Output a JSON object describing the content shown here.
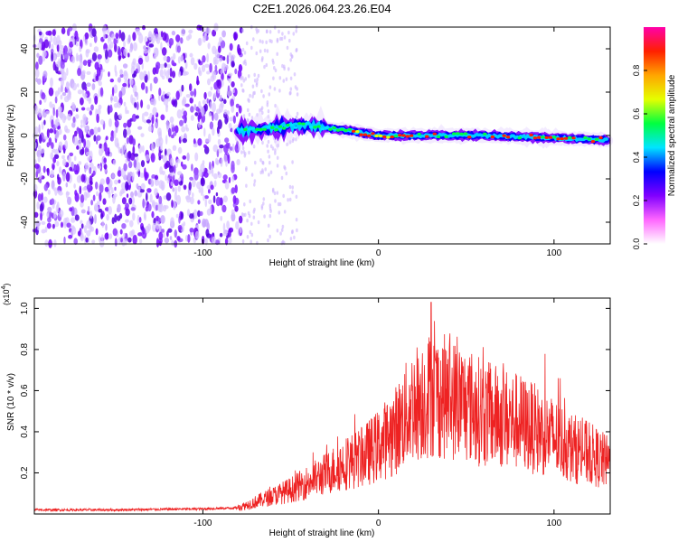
{
  "figure": {
    "title": "C2E1.2026.064.23.26.E04"
  },
  "chart_data": [
    {
      "type": "heatmap",
      "title": "C2E1.2026.064.23.26.E04",
      "xlabel": "Height of straight line (km)",
      "ylabel": "Frequency (Hz)",
      "xlim": [
        -196,
        132
      ],
      "ylim": [
        -50,
        50
      ],
      "x_ticks": [
        -100,
        0,
        100
      ],
      "y_ticks": [
        -40,
        -20,
        0,
        20,
        40
      ],
      "grid": false,
      "colorbar": {
        "label": "Normalized spectral amplitude",
        "range": [
          0.0,
          1.0
        ],
        "ticks": [
          0.0,
          0.2,
          0.4,
          0.6,
          0.8
        ],
        "colormap": [
          "#ffffff",
          "#ff66ff",
          "#8000ff",
          "#0000ff",
          "#00e5ff",
          "#00ff40",
          "#e5ff00",
          "#ffa500",
          "#ff2000",
          "#ff00aa"
        ]
      },
      "description_points": [
        {
          "x": -80,
          "frequency": 2
        },
        {
          "x": -40,
          "frequency": 5
        },
        {
          "x": 0,
          "frequency": 0
        },
        {
          "x": 60,
          "frequency": 0
        },
        {
          "x": 130,
          "frequency": -2
        }
      ]
    },
    {
      "type": "line",
      "xlabel": "Height of straight line (km)",
      "ylabel": "SNR (10 * v/v)",
      "y_scale_label": "(x10^4)",
      "xlim": [
        -196,
        132
      ],
      "ylim": [
        0,
        1.05
      ],
      "x_ticks": [
        -100,
        0,
        100
      ],
      "y_ticks": [
        0.2,
        0.4,
        0.6,
        0.8,
        1.0
      ],
      "grid": false,
      "series": [
        {
          "name": "SNR",
          "color": "#ee2222",
          "envelope": {
            "x": [
              -196,
              -150,
              -100,
              -80,
              -70,
              -60,
              -50,
              -40,
              -30,
              -20,
              -10,
              0,
              10,
              20,
              30,
              40,
              50,
              60,
              70,
              80,
              90,
              100,
              110,
              120,
              132
            ],
            "y": [
              0.02,
              0.02,
              0.025,
              0.03,
              0.06,
              0.09,
              0.12,
              0.16,
              0.2,
              0.25,
              0.28,
              0.34,
              0.42,
              0.55,
              0.6,
              0.58,
              0.55,
              0.5,
              0.48,
              0.46,
              0.42,
              0.38,
              0.33,
              0.3,
              0.25
            ]
          },
          "peak": {
            "x": 30,
            "y": 1.03
          }
        }
      ]
    }
  ]
}
